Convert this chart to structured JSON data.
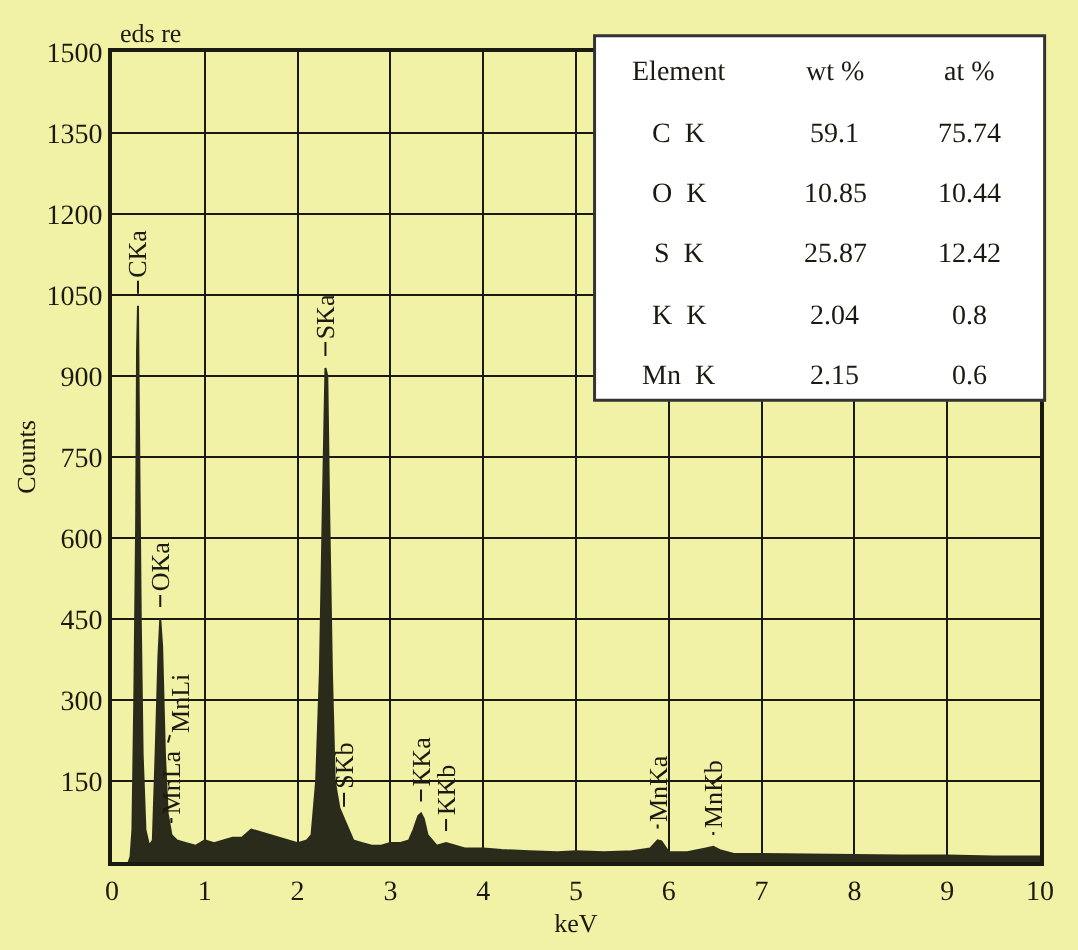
{
  "chart_data": {
    "type": "area",
    "xlabel": "keV",
    "ylabel": "Counts",
    "xlim": [
      0,
      10
    ],
    "ylim": [
      0,
      1500
    ],
    "xticks": [
      0,
      1,
      2,
      3,
      4,
      5,
      6,
      7,
      8,
      9,
      10
    ],
    "yticks": [
      150,
      300,
      450,
      600,
      750,
      900,
      1050,
      1200,
      1350,
      1500
    ],
    "grid": true,
    "x": [
      0.18,
      0.2,
      0.22,
      0.24,
      0.26,
      0.27,
      0.28,
      0.29,
      0.31,
      0.33,
      0.36,
      0.4,
      0.44,
      0.47,
      0.5,
      0.52,
      0.54,
      0.57,
      0.6,
      0.64,
      0.7,
      0.8,
      0.9,
      1.0,
      1.1,
      1.2,
      1.3,
      1.4,
      1.5,
      1.6,
      1.7,
      1.8,
      1.9,
      2.0,
      2.1,
      2.15,
      2.2,
      2.24,
      2.27,
      2.3,
      2.32,
      2.34,
      2.37,
      2.4,
      2.45,
      2.5,
      2.6,
      2.7,
      2.8,
      2.9,
      3.0,
      3.1,
      3.2,
      3.25,
      3.3,
      3.33,
      3.36,
      3.4,
      3.5,
      3.6,
      3.7,
      3.8,
      4.0,
      4.2,
      4.5,
      4.8,
      5.0,
      5.3,
      5.6,
      5.8,
      5.88,
      5.92,
      6.0,
      6.2,
      6.4,
      6.48,
      6.55,
      6.7,
      7.0,
      7.5,
      8.0,
      8.5,
      9.0,
      9.5,
      10.0
    ],
    "series": [
      {
        "color": "#2b2b1c",
        "values": [
          0,
          10,
          60,
          300,
          620,
          950,
          1030,
          820,
          450,
          200,
          60,
          30,
          40,
          200,
          380,
          450,
          400,
          200,
          90,
          50,
          40,
          35,
          30,
          40,
          35,
          40,
          45,
          45,
          60,
          55,
          50,
          45,
          40,
          35,
          40,
          50,
          150,
          350,
          640,
          915,
          900,
          650,
          350,
          150,
          100,
          80,
          40,
          35,
          30,
          30,
          35,
          35,
          40,
          60,
          85,
          90,
          80,
          50,
          30,
          35,
          30,
          25,
          25,
          22,
          20,
          18,
          20,
          18,
          20,
          25,
          40,
          38,
          18,
          18,
          25,
          28,
          22,
          15,
          15,
          14,
          13,
          12,
          12,
          10,
          10
        ]
      }
    ],
    "annotations": [
      "eds re",
      "Element",
      "wt %",
      "at %",
      "C  K",
      "59.1",
      "75.74",
      "O  K",
      "10.85",
      "10.44",
      "S  K",
      "25.87",
      "12.42",
      "K  K",
      "2.04",
      "0.8",
      "Mn  K",
      "2.15",
      "0.6",
      {
        "text": "CKa",
        "x": 0.28,
        "y": 1030
      },
      {
        "text": "OKa",
        "x": 0.52,
        "y": 450
      },
      {
        "text": "MnLi",
        "x": 0.57,
        "y": 200
      },
      {
        "text": "MnLa",
        "x": 0.64,
        "y": 50
      },
      {
        "text": "SKa",
        "x": 2.3,
        "y": 915
      },
      {
        "text": "SKb",
        "x": 2.5,
        "y": 80
      },
      {
        "text": "KKa",
        "x": 3.33,
        "y": 90
      },
      {
        "text": "KKb",
        "x": 3.6,
        "y": 35
      },
      {
        "text": "MnKa",
        "x": 5.88,
        "y": 40
      },
      {
        "text": "MnKb",
        "x": 6.48,
        "y": 28
      }
    ]
  }
}
